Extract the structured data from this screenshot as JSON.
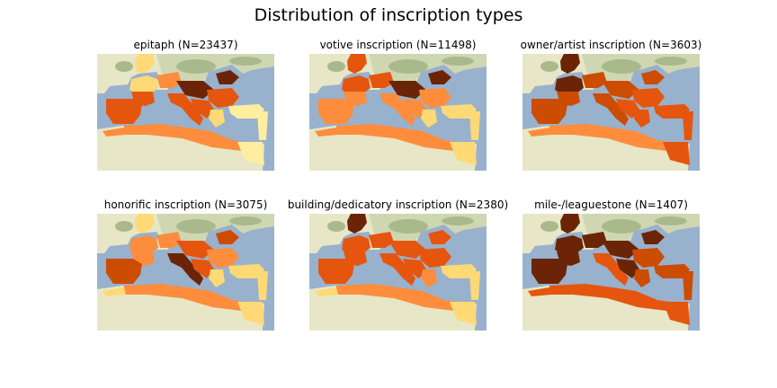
{
  "figure": {
    "title": "Distribution of inscription types"
  },
  "colors": {
    "sea": "#98b1cd",
    "land": "#e7e6c7",
    "land_north": "#cfd6b2",
    "forest": "#aab98c",
    "scale": [
      "#ffeda0",
      "#fed976",
      "#fd8d3c",
      "#e6550d",
      "#cc4c02",
      "#6b2506"
    ]
  },
  "panels": [
    {
      "title": "epitaph (N=23437)",
      "region_levels": {
        "britain": 1,
        "gaul_north": 1,
        "gaul_south": 3,
        "germania": 2,
        "hispania": 3,
        "italy": 3,
        "alps_pannonia": 5,
        "dalmatia": 3,
        "balkans": 3,
        "greece": 1,
        "asia_minor": 0,
        "levant": 0,
        "africa": 2,
        "mauretania": 2,
        "egypt": 0,
        "dacia": 5
      }
    },
    {
      "title": "votive inscription (N=11498)",
      "region_levels": {
        "britain": 3,
        "gaul_north": 3,
        "gaul_south": 2,
        "germania": 3,
        "hispania": 2,
        "italy": 2,
        "alps_pannonia": 5,
        "dalmatia": 2,
        "balkans": 2,
        "greece": 1,
        "asia_minor": 1,
        "levant": 1,
        "africa": 2,
        "mauretania": 2,
        "egypt": 1,
        "dacia": 5
      }
    },
    {
      "title": "owner/artist inscription (N=3603)",
      "region_levels": {
        "britain": 5,
        "gaul_north": 5,
        "gaul_south": 4,
        "germania": 4,
        "hispania": 4,
        "italy": 4,
        "alps_pannonia": 4,
        "dalmatia": 3,
        "balkans": 3,
        "greece": 3,
        "asia_minor": 3,
        "levant": 3,
        "africa": 2,
        "mauretania": 2,
        "egypt": 3,
        "dacia": 4
      }
    },
    {
      "title": "honorific inscription (N=3075)",
      "region_levels": {
        "britain": 1,
        "gaul_north": 2,
        "gaul_south": 2,
        "germania": 2,
        "hispania": 4,
        "italy": 5,
        "alps_pannonia": 3,
        "dalmatia": 3,
        "balkans": 2,
        "greece": 1,
        "asia_minor": 1,
        "levant": 1,
        "africa": 2,
        "mauretania": 1,
        "egypt": 1,
        "dacia": 4
      }
    },
    {
      "title": "building/dedicatory inscription (N=2380)",
      "region_levels": {
        "britain": 5,
        "gaul_north": 3,
        "gaul_south": 3,
        "germania": 3,
        "hispania": 3,
        "italy": 3,
        "alps_pannonia": 3,
        "dalmatia": 3,
        "balkans": 3,
        "greece": 2,
        "asia_minor": 1,
        "levant": 1,
        "africa": 2,
        "mauretania": 1,
        "egypt": 1,
        "dacia": 3
      }
    },
    {
      "title": "mile-/leaguestone (N=1407)",
      "region_levels": {
        "britain": 5,
        "gaul_north": 5,
        "gaul_south": 5,
        "germania": 5,
        "hispania": 5,
        "italy": 3,
        "alps_pannonia": 5,
        "dalmatia": 5,
        "balkans": 4,
        "greece": 4,
        "asia_minor": 4,
        "levant": 4,
        "africa": 3,
        "mauretania": 3,
        "egypt": 3,
        "dacia": 5
      }
    }
  ]
}
